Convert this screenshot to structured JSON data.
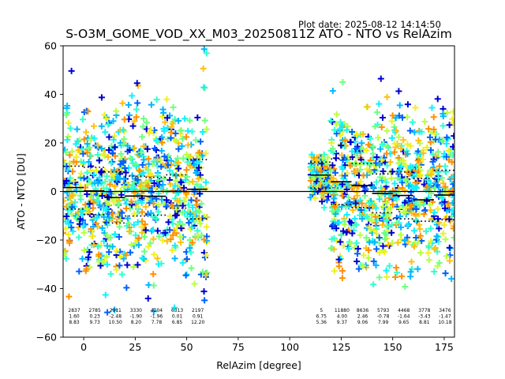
{
  "plot_date": "Plot date: 2025-08-12 14:14:50",
  "chart_data": {
    "type": "scatter",
    "title": "S-O3M_GOME_VOD_XX_M03_20250811Z ATO - NTO vs RelAzim",
    "xlabel": "RelAzim [degree]",
    "ylabel": "ATO - NTO [DU]",
    "xlim": [
      -10,
      180
    ],
    "ylim": [
      -60,
      60
    ],
    "xticks": [
      0,
      25,
      50,
      75,
      100,
      125,
      150,
      175
    ],
    "yticks": [
      -60,
      -40,
      -20,
      0,
      20,
      40,
      60
    ],
    "colormap": [
      "#0000d0",
      "#0060ff",
      "#00b8ff",
      "#10f0ff",
      "#30ffd0",
      "#70ff80",
      "#b8ff40",
      "#f0f020",
      "#ffc010",
      "#ff9000"
    ],
    "reference_line": {
      "y": 0,
      "color": "#000000"
    },
    "bins": [
      {
        "x_start": -10,
        "x_end": 0,
        "count": "2837",
        "mean": "1.60",
        "std": "8.83",
        "mean_val": 1.6,
        "std_val": 8.83
      },
      {
        "x_start": 0,
        "x_end": 10,
        "count": "2785",
        "mean": "0.23",
        "std": "9.73",
        "mean_val": 0.23,
        "std_val": 9.73
      },
      {
        "x_start": 10,
        "x_end": 20,
        "count": "2911",
        "mean": "-2.48",
        "std": "10.50",
        "mean_val": -2.48,
        "std_val": 10.5
      },
      {
        "x_start": 20,
        "x_end": 30,
        "count": "3330",
        "mean": "-1.90",
        "std": "8.20",
        "mean_val": -1.9,
        "std_val": 8.2
      },
      {
        "x_start": 30,
        "x_end": 40,
        "count": "4204",
        "mean": "-1.96",
        "std": "7.78",
        "mean_val": -1.96,
        "std_val": 7.78
      },
      {
        "x_start": 40,
        "x_end": 50,
        "count": "6313",
        "mean": "0.01",
        "std": "6.85",
        "mean_val": 0.01,
        "std_val": 6.85
      },
      {
        "x_start": 50,
        "x_end": 60,
        "count": "2197",
        "mean": "0.91",
        "std": "12.20",
        "mean_val": 0.91,
        "std_val": 12.2
      },
      {
        "x_start": 110,
        "x_end": 120,
        "count": "5",
        "mean": "6.75",
        "std": "5.36",
        "mean_val": 6.75,
        "std_val": 5.36
      },
      {
        "x_start": 120,
        "x_end": 130,
        "count": "11880",
        "mean": "4.00",
        "std": "9.37",
        "mean_val": 4.0,
        "std_val": 9.37
      },
      {
        "x_start": 130,
        "x_end": 140,
        "count": "8636",
        "mean": "2.46",
        "std": "9.06",
        "mean_val": 2.46,
        "std_val": 9.06
      },
      {
        "x_start": 140,
        "x_end": 150,
        "count": "5793",
        "mean": "-0.78",
        "std": "7.99",
        "mean_val": -0.78,
        "std_val": 7.99
      },
      {
        "x_start": 150,
        "x_end": 160,
        "count": "4468",
        "mean": "-1.64",
        "std": "9.65",
        "mean_val": -1.64,
        "std_val": 9.65
      },
      {
        "x_start": 160,
        "x_end": 170,
        "count": "3778",
        "mean": "-3.43",
        "std": "8.81",
        "mean_val": -3.43,
        "std_val": 8.81
      },
      {
        "x_start": 170,
        "x_end": 180,
        "count": "3476",
        "mean": "-1.47",
        "std": "10.18",
        "mean_val": -1.47,
        "std_val": 10.18
      }
    ],
    "scatter_clusters": [
      {
        "x_min": -10,
        "x_max": 60,
        "y_center": 0,
        "spread": 17,
        "ends": [
          60
        ]
      },
      {
        "x_min": 110,
        "x_max": 120,
        "y_center": 6,
        "spread": 5
      },
      {
        "x_min": 120,
        "x_max": 180,
        "y_center": 1,
        "spread": 16
      }
    ]
  }
}
